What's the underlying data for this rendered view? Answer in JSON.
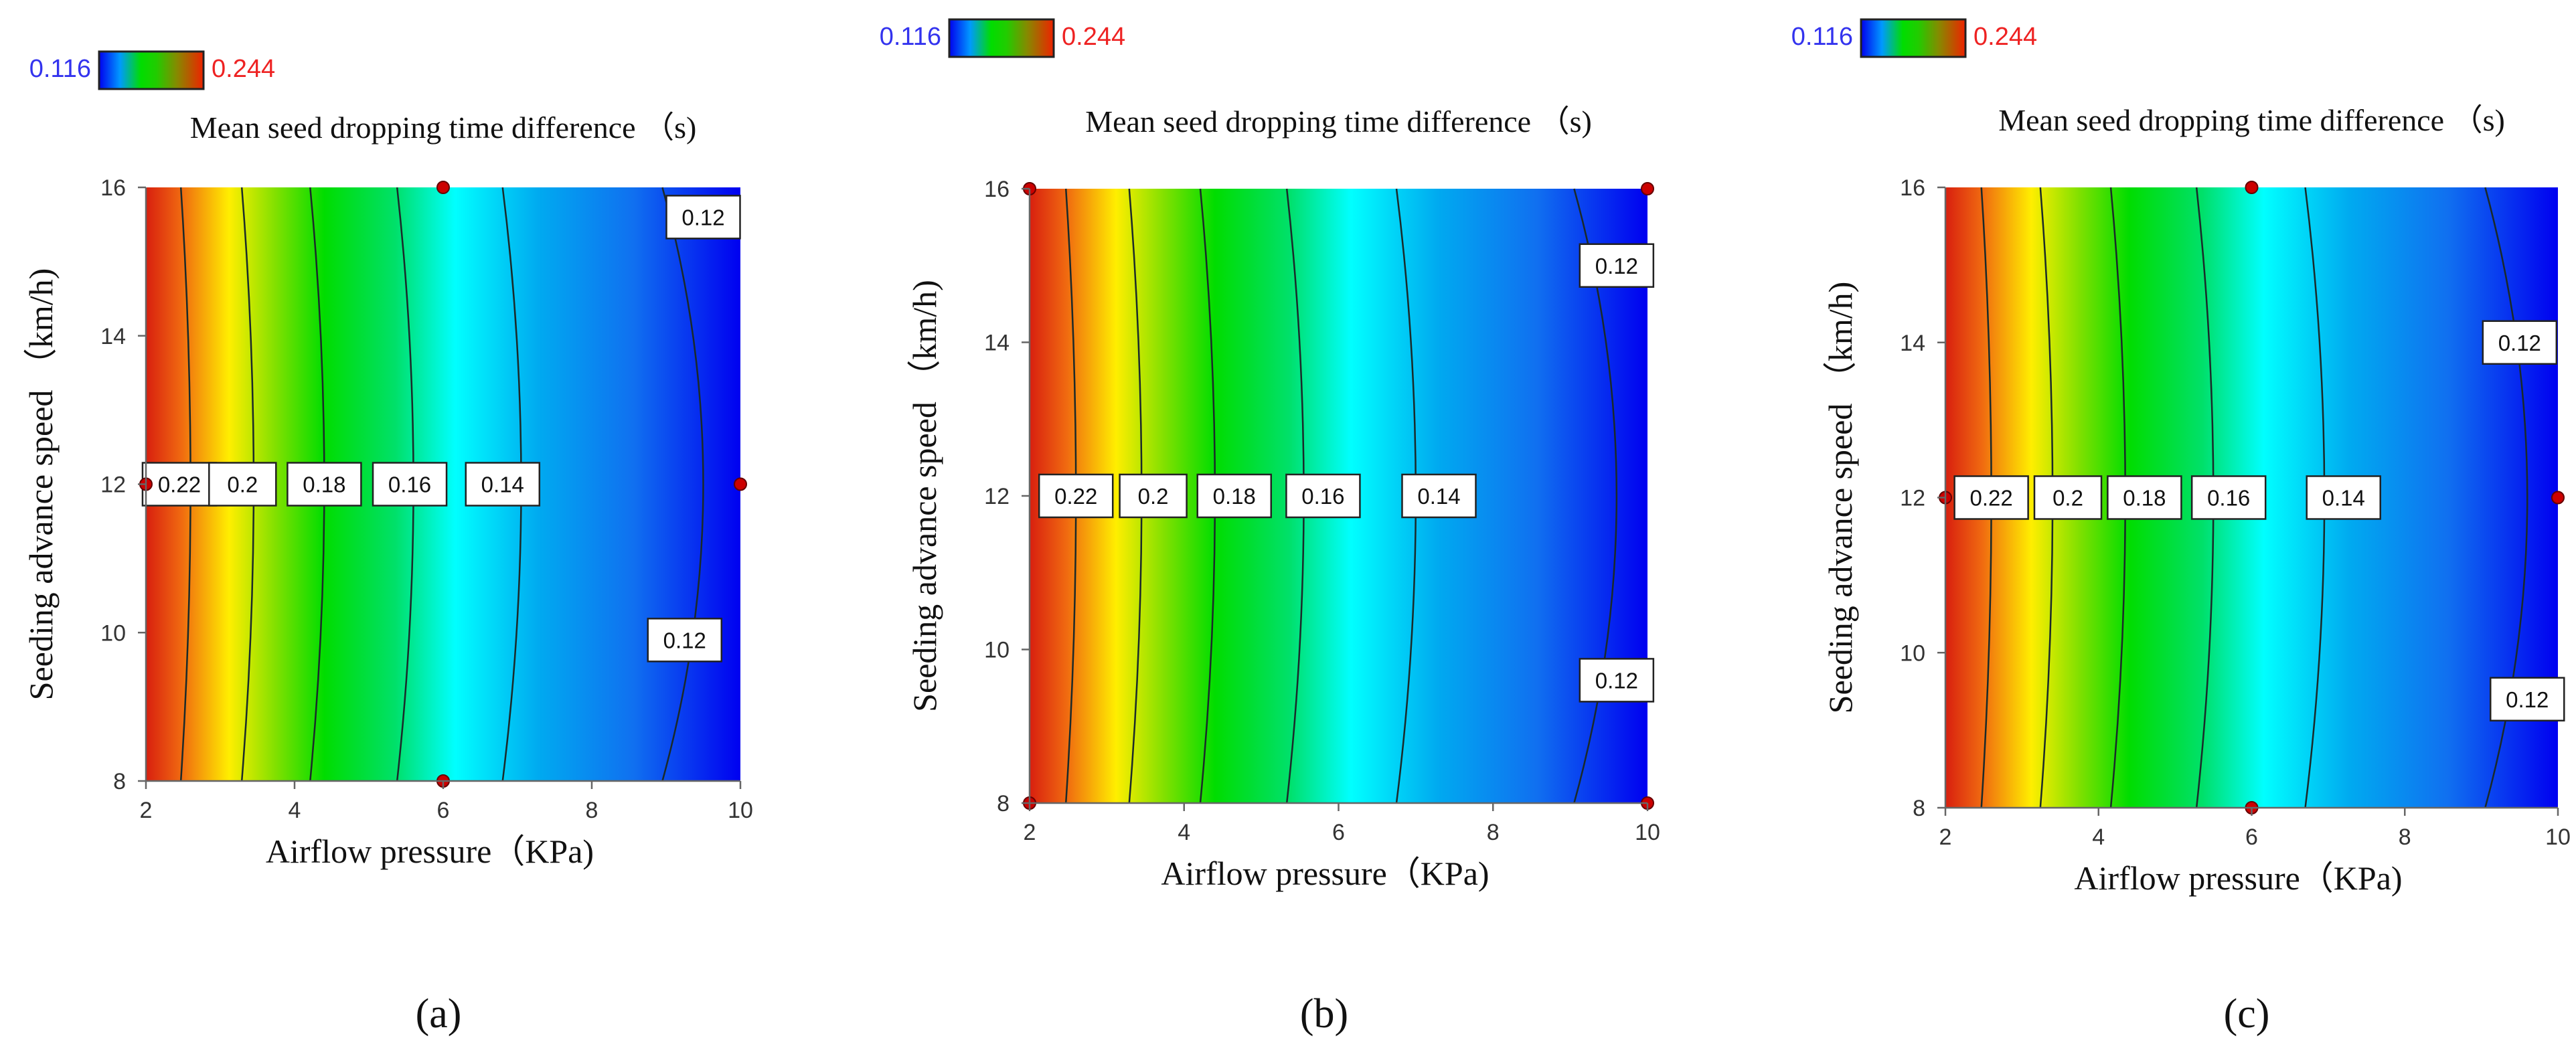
{
  "chart_data": [
    {
      "panel": "a",
      "type": "heatmap",
      "subtype": "contour",
      "title": "Mean seed dropping time difference （s)",
      "xlabel": "Airflow pressure（KPa)",
      "ylabel": "Seeding advance speed （km/h)",
      "xlim": [
        2,
        10
      ],
      "ylim": [
        8,
        16
      ],
      "xticks": [
        "2",
        "4",
        "6",
        "8",
        "10"
      ],
      "yticks": [
        "8",
        "10",
        "12",
        "14",
        "16"
      ],
      "colorbar": {
        "min": "0.116",
        "max": "0.244"
      },
      "contour_levels": [
        0.22,
        0.2,
        0.18,
        0.16,
        0.14,
        0.12
      ],
      "contour_x_at_mid": [
        2.6,
        3.45,
        4.4,
        5.6,
        7.05,
        9.5
      ],
      "contour_labels": [
        {
          "text": "0.22",
          "x": 2.45,
          "y": 12
        },
        {
          "text": "0.2",
          "x": 3.3,
          "y": 12
        },
        {
          "text": "0.18",
          "x": 4.4,
          "y": 12
        },
        {
          "text": "0.16",
          "x": 5.55,
          "y": 12
        },
        {
          "text": "0.14",
          "x": 6.8,
          "y": 12
        },
        {
          "text": "0.12",
          "x": 9.5,
          "y": 15.6
        },
        {
          "text": "0.12",
          "x": 9.25,
          "y": 9.9
        }
      ],
      "design_points": [
        [
          2,
          12
        ],
        [
          6,
          16
        ],
        [
          6,
          8
        ],
        [
          10,
          12
        ]
      ],
      "caption": "(a)"
    },
    {
      "panel": "b",
      "type": "heatmap",
      "subtype": "contour",
      "title": "Mean seed dropping time difference （s)",
      "xlabel": "Airflow pressure（KPa)",
      "ylabel": "Seeding advance speed （km/h)",
      "xlim": [
        2,
        10
      ],
      "ylim": [
        8,
        16
      ],
      "xticks": [
        "2",
        "4",
        "6",
        "8",
        "10"
      ],
      "yticks": [
        "8",
        "10",
        "12",
        "14",
        "16"
      ],
      "colorbar": {
        "min": "0.116",
        "max": "0.244"
      },
      "contour_levels": [
        0.22,
        0.2,
        0.18,
        0.16,
        0.14,
        0.12
      ],
      "contour_x_at_mid": [
        2.6,
        3.45,
        4.4,
        5.55,
        7.0,
        9.6
      ],
      "contour_labels": [
        {
          "text": "0.22",
          "x": 2.6,
          "y": 12
        },
        {
          "text": "0.2",
          "x": 3.6,
          "y": 12
        },
        {
          "text": "0.18",
          "x": 4.65,
          "y": 12
        },
        {
          "text": "0.16",
          "x": 5.8,
          "y": 12
        },
        {
          "text": "0.14",
          "x": 7.3,
          "y": 12
        },
        {
          "text": "0.12",
          "x": 9.6,
          "y": 15.0
        },
        {
          "text": "0.12",
          "x": 9.6,
          "y": 9.6
        }
      ],
      "design_points": [
        [
          2,
          16
        ],
        [
          2,
          8
        ],
        [
          10,
          16
        ],
        [
          10,
          8
        ]
      ],
      "caption": "(b)"
    },
    {
      "panel": "c",
      "type": "heatmap",
      "subtype": "contour",
      "title": "Mean seed dropping time difference （s)",
      "xlabel": "Airflow pressure（KPa)",
      "ylabel": "Seeding advance speed （km/h)",
      "xlim": [
        2,
        10
      ],
      "ylim": [
        8,
        16
      ],
      "xticks": [
        "2",
        "4",
        "6",
        "8",
        "10"
      ],
      "yticks": [
        "8",
        "10",
        "12",
        "14",
        "16"
      ],
      "colorbar": {
        "min": "0.116",
        "max": "0.244"
      },
      "contour_levels": [
        0.22,
        0.2,
        0.18,
        0.16,
        0.14,
        0.12
      ],
      "contour_x_at_mid": [
        2.6,
        3.4,
        4.35,
        5.5,
        6.95,
        9.6
      ],
      "contour_labels": [
        {
          "text": "0.22",
          "x": 2.6,
          "y": 12
        },
        {
          "text": "0.2",
          "x": 3.6,
          "y": 12
        },
        {
          "text": "0.18",
          "x": 4.6,
          "y": 12
        },
        {
          "text": "0.16",
          "x": 5.7,
          "y": 12
        },
        {
          "text": "0.14",
          "x": 7.2,
          "y": 12
        },
        {
          "text": "0.12",
          "x": 9.5,
          "y": 14.0
        },
        {
          "text": "0.12",
          "x": 9.6,
          "y": 9.4
        }
      ],
      "design_points": [
        [
          2,
          12
        ],
        [
          6,
          16
        ],
        [
          6,
          8
        ],
        [
          10,
          12
        ]
      ],
      "caption": "(c)"
    }
  ],
  "colors": {
    "min_label": "#3333ee",
    "max_label": "#ee2222",
    "point": "#cc0000",
    "gradient": [
      "#d81f0f",
      "#f06a10",
      "#ffee00",
      "#00dd00",
      "#00ffff",
      "#00aaf0",
      "#0000f0"
    ]
  }
}
